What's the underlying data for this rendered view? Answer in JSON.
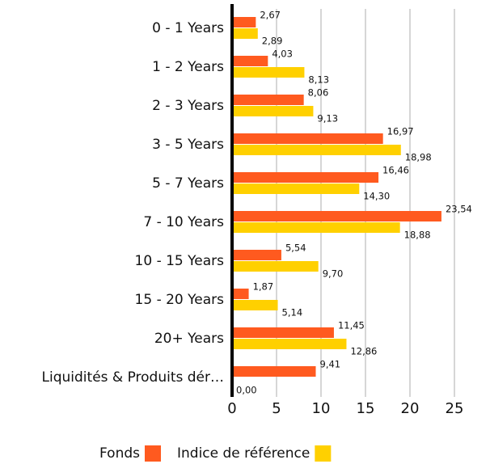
{
  "chart_data": {
    "type": "bar",
    "orientation": "horizontal",
    "categories": [
      "0 - 1 Years",
      "1 - 2 Years",
      "2 - 3 Years",
      "3 - 5 Years",
      "5 - 7 Years",
      "7 - 10 Years",
      "10 - 15 Years",
      "15 - 20 Years",
      "20+ Years",
      "Liquidités & Produits dér…"
    ],
    "series": [
      {
        "name": "Fonds",
        "color": "#ff5a1f",
        "values": [
          2.67,
          4.03,
          8.06,
          16.97,
          16.46,
          23.54,
          5.54,
          1.87,
          11.45,
          9.41
        ],
        "value_labels": [
          "2,67",
          "4,03",
          "8,06",
          "16,97",
          "16,46",
          "23,54",
          "5,54",
          "1,87",
          "11,45",
          "9,41"
        ]
      },
      {
        "name": "Indice de référence",
        "color": "#ffd000",
        "values": [
          2.89,
          8.13,
          9.13,
          18.98,
          14.3,
          18.88,
          9.7,
          5.14,
          12.86,
          0.0
        ],
        "value_labels": [
          "2,89",
          "8,13",
          "9,13",
          "18,98",
          "14,30",
          "18,88",
          "9,70",
          "5,14",
          "12,86",
          "0,00"
        ]
      }
    ],
    "xlim": [
      0,
      27
    ],
    "xticks": [
      0,
      5,
      10,
      15,
      20,
      25
    ],
    "grid": true,
    "legend": "bottom"
  }
}
